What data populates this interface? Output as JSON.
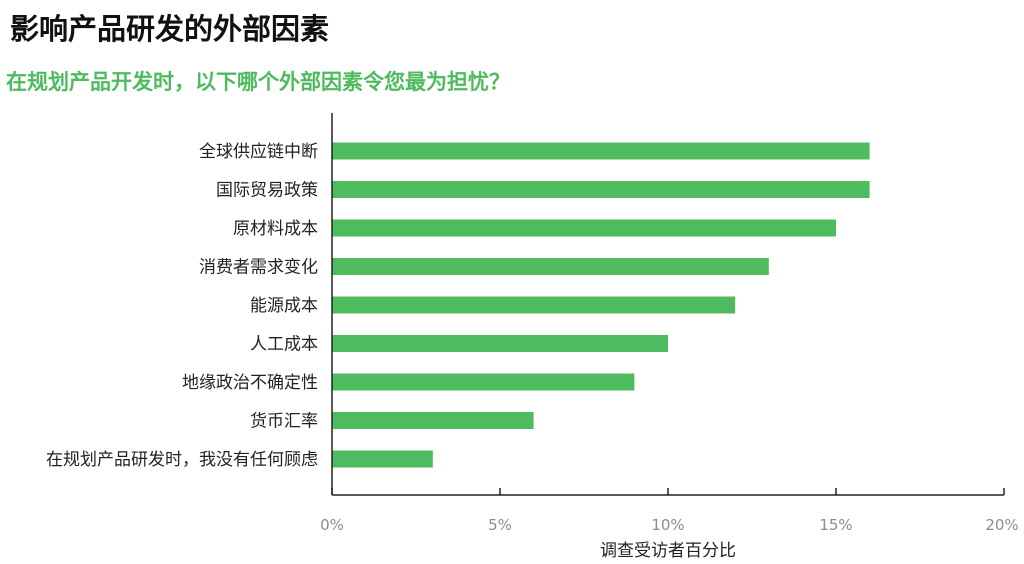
{
  "header": {
    "title": "影响产品研发的外部因素",
    "subtitle": "在规划产品开发时，以下哪个外部因素令您最为担忧？"
  },
  "colors": {
    "bar": "#4fbb5f",
    "subtitle": "#4fbb5f",
    "axis": "#222222",
    "tick_label": "#8c8c8c"
  },
  "chart_data": {
    "type": "bar",
    "orientation": "horizontal",
    "categories": [
      "全球供应链中断",
      "国际贸易政策",
      "原材料成本",
      "消费者需求变化",
      "能源成本",
      "人工成本",
      "地缘政治不确定性",
      "货币汇率",
      "在规划产品研发时，我没有任何顾虑"
    ],
    "values": [
      16,
      16,
      15,
      13,
      12,
      10,
      9,
      6,
      3
    ],
    "xlim": [
      0,
      20
    ],
    "xticks": [
      0,
      5,
      10,
      15,
      20
    ],
    "xtick_labels": [
      "0%",
      "5%",
      "10%",
      "15%",
      "20%"
    ],
    "xlabel": "调查受访者百分比",
    "unit": "%",
    "grid": false,
    "legend": "none"
  }
}
